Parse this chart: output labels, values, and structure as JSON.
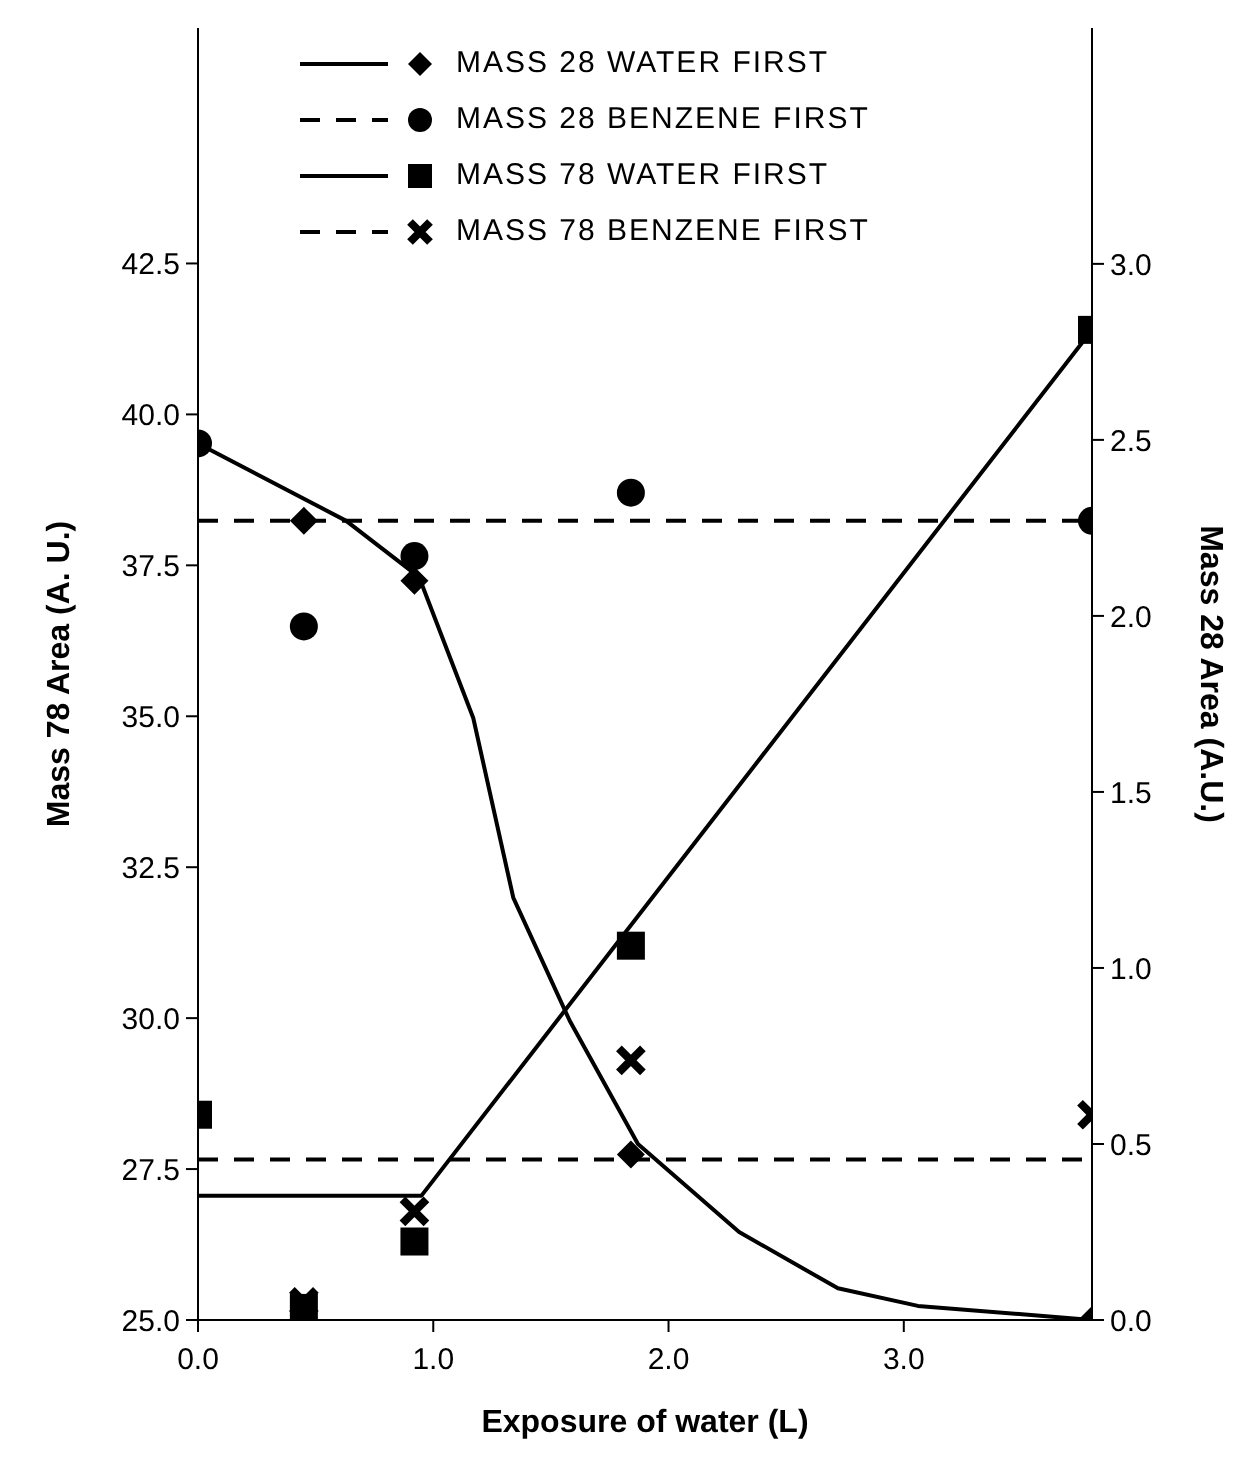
{
  "chart_data": {
    "type": "line",
    "xlabel": "Exposure of water (L)",
    "ylabel": "Mass 78 Area (A. U.)",
    "y2label": "Mass 28 Area (A.U.)",
    "xlim": [
      0,
      3.8
    ],
    "xticks": [
      {
        "value": 0,
        "label": "0.0"
      },
      {
        "value": 1,
        "label": "1.0"
      },
      {
        "value": 2,
        "label": "2.0"
      },
      {
        "value": 3,
        "label": "3.0"
      }
    ],
    "ylim": [
      25,
      46.4
    ],
    "yticks": [
      {
        "value": 25,
        "label": "25.0"
      },
      {
        "value": 27.5,
        "label": "27.5"
      },
      {
        "value": 30,
        "label": "30.0"
      },
      {
        "value": 32.5,
        "label": "32.5"
      },
      {
        "value": 35,
        "label": "35.0"
      },
      {
        "value": 37.5,
        "label": "37.5"
      },
      {
        "value": 40,
        "label": "40.0"
      },
      {
        "value": 42.5,
        "label": "42.5"
      }
    ],
    "y2lim": [
      0,
      3.67
    ],
    "y2ticks": [
      {
        "value": 0,
        "label": "0.0"
      },
      {
        "value": 0.5,
        "label": "0.5"
      },
      {
        "value": 1,
        "label": "1.0"
      },
      {
        "value": 1.5,
        "label": "1.5"
      },
      {
        "value": 2,
        "label": "2.0"
      },
      {
        "value": 2.5,
        "label": "2.5"
      },
      {
        "value": 3,
        "label": "3.0"
      }
    ],
    "legend": "top",
    "grid": false,
    "series": [
      {
        "name": "MASS 28 WATER FIRST",
        "type": "scatter",
        "axis": "y2",
        "marker": "diamond",
        "color": "#000000",
        "x": [
          0.45,
          0.92,
          1.84,
          3.8
        ],
        "values": [
          2.27,
          2.1,
          0.47,
          0.0
        ]
      },
      {
        "axis": "y2",
        "marker": "none",
        "line_style": "solid",
        "color": "#000000",
        "x": [
          0,
          0.63,
          0.94,
          1.17,
          1.34,
          1.58,
          1.87,
          2.3,
          2.72,
          3.06,
          3.8
        ],
        "values": [
          2.49,
          2.27,
          2.11,
          1.71,
          1.2,
          0.85,
          0.5,
          0.25,
          0.09,
          0.04,
          0.0
        ]
      },
      {
        "name": "MASS 28 BENZENE FIRST",
        "type": "scatter",
        "axis": "y2",
        "marker": "circle",
        "color": "#000000",
        "x": [
          0,
          0.45,
          0.92,
          1.84,
          3.8
        ],
        "values": [
          2.49,
          1.97,
          2.17,
          2.35,
          2.27
        ]
      },
      {
        "axis": "y2",
        "marker": "none",
        "line_style": "dashed",
        "color": "#000000",
        "x": [
          0,
          3.8
        ],
        "values": [
          2.27,
          2.27
        ]
      },
      {
        "name": "MASS 78 WATER FIRST",
        "type": "scatter",
        "marker": "square",
        "color": "#000000",
        "x": [
          0,
          0.45,
          0.92,
          1.84,
          3.8
        ],
        "values": [
          28.4,
          25.2,
          26.3,
          31.2,
          41.4
        ]
      },
      {
        "marker": "none",
        "line_style": "solid",
        "color": "#000000",
        "x": [
          0,
          0.95,
          3.8
        ],
        "values": [
          27.06,
          27.06,
          41.4
        ]
      },
      {
        "name": "MASS 78 BENZENE FIRST",
        "type": "scatter",
        "marker": "cross",
        "color": "#000000",
        "x": [
          0.45,
          0.92,
          1.84,
          3.8
        ],
        "values": [
          25.3,
          26.8,
          29.3,
          28.4
        ]
      },
      {
        "marker": "none",
        "line_style": "dashed",
        "color": "#000000",
        "x": [
          0,
          3.8
        ],
        "values": [
          27.66,
          27.66
        ]
      }
    ]
  }
}
